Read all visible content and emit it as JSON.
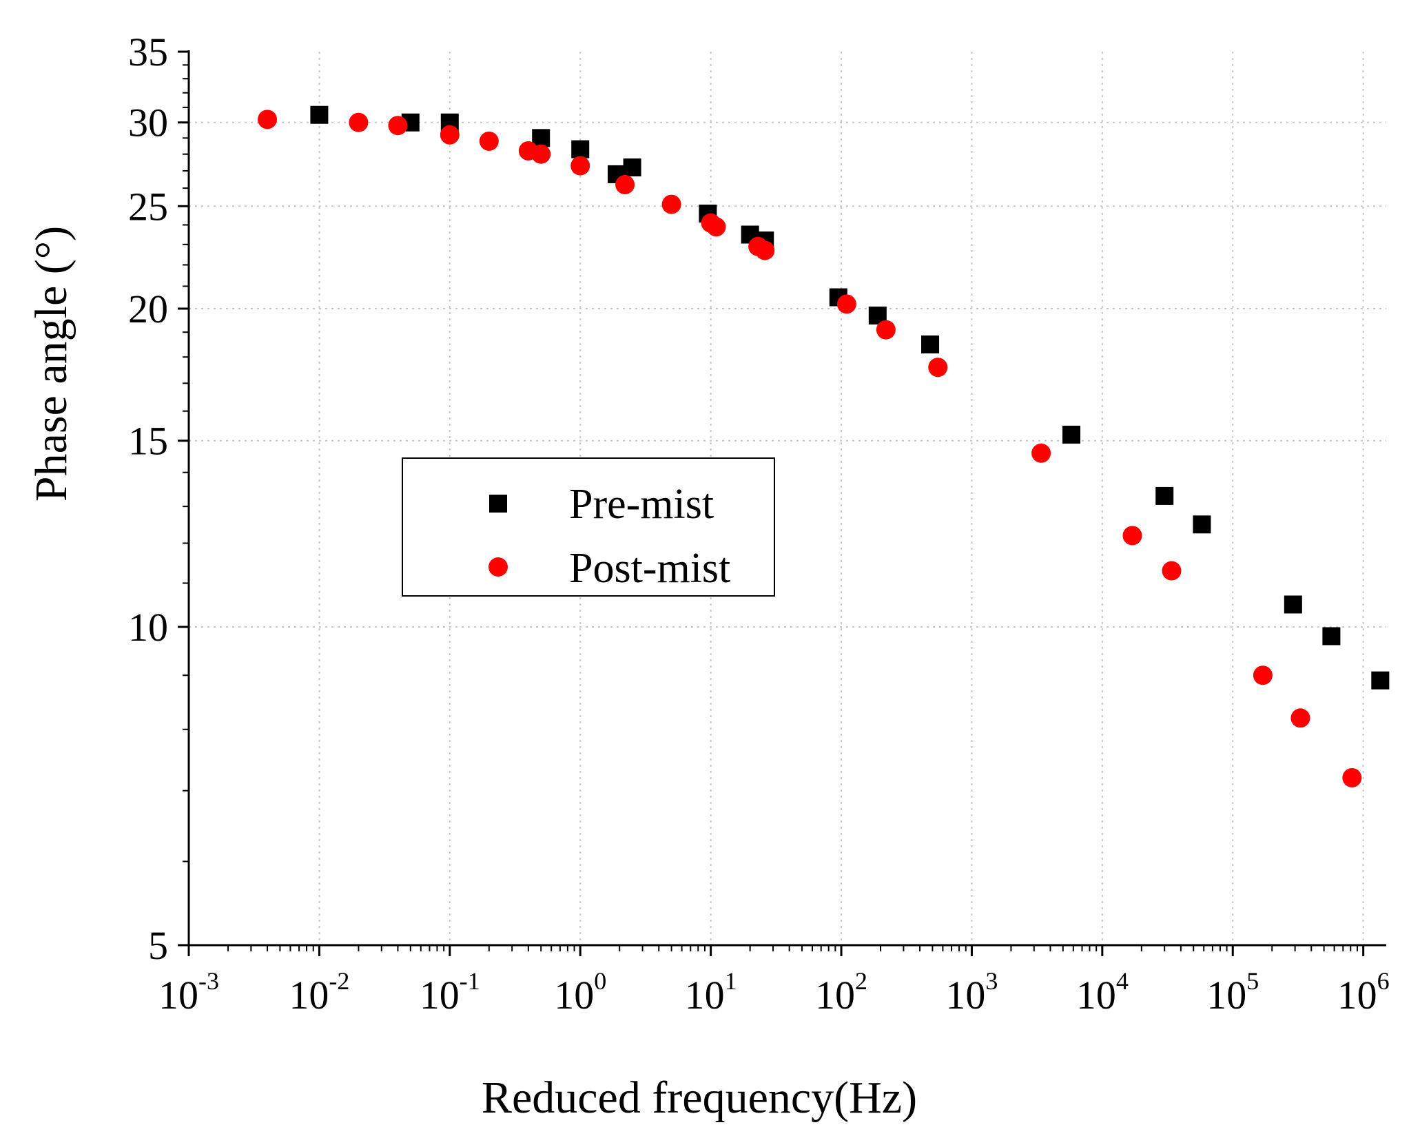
{
  "chart_data": {
    "type": "scatter",
    "title": "",
    "xlabel": "Reduced frequency(Hz)",
    "ylabel": "Phase angle (°)",
    "xscale": "log",
    "yscale": "log",
    "xlim": [
      0.001,
      1500000
    ],
    "ylim": [
      5,
      35
    ],
    "x_ticks": [
      {
        "value": 0.001,
        "base": "10",
        "exp": "-3"
      },
      {
        "value": 0.01,
        "base": "10",
        "exp": "-2"
      },
      {
        "value": 0.1,
        "base": "10",
        "exp": "-1"
      },
      {
        "value": 1,
        "base": "10",
        "exp": "0"
      },
      {
        "value": 10,
        "base": "10",
        "exp": "1"
      },
      {
        "value": 100,
        "base": "10",
        "exp": "2"
      },
      {
        "value": 1000,
        "base": "10",
        "exp": "3"
      },
      {
        "value": 10000,
        "base": "10",
        "exp": "4"
      },
      {
        "value": 100000,
        "base": "10",
        "exp": "5"
      },
      {
        "value": 1000000,
        "base": "10",
        "exp": "6"
      }
    ],
    "y_ticks": [
      {
        "value": 5,
        "label": "5"
      },
      {
        "value": 10,
        "label": "10"
      },
      {
        "value": 15,
        "label": "15"
      },
      {
        "value": 20,
        "label": "20"
      },
      {
        "value": 25,
        "label": "25"
      },
      {
        "value": 30,
        "label": "30"
      },
      {
        "value": 35,
        "label": "35"
      }
    ],
    "grid": true,
    "legend_position": "center-left",
    "series": [
      {
        "name": "Pre-mist",
        "marker": "square",
        "color": "#000000",
        "points": [
          {
            "x": 0.01,
            "y": 30.5
          },
          {
            "x": 0.05,
            "y": 30.0
          },
          {
            "x": 0.1,
            "y": 30.0
          },
          {
            "x": 0.5,
            "y": 29.0
          },
          {
            "x": 1.0,
            "y": 28.3
          },
          {
            "x": 1.9,
            "y": 26.8
          },
          {
            "x": 2.5,
            "y": 27.2
          },
          {
            "x": 9.5,
            "y": 24.6
          },
          {
            "x": 20,
            "y": 23.5
          },
          {
            "x": 26,
            "y": 23.2
          },
          {
            "x": 95,
            "y": 20.5
          },
          {
            "x": 190,
            "y": 19.7
          },
          {
            "x": 480,
            "y": 18.5
          },
          {
            "x": 5800,
            "y": 15.2
          },
          {
            "x": 30000,
            "y": 13.3
          },
          {
            "x": 58000,
            "y": 12.5
          },
          {
            "x": 290000,
            "y": 10.5
          },
          {
            "x": 570000,
            "y": 9.8
          },
          {
            "x": 1350000,
            "y": 8.9
          }
        ]
      },
      {
        "name": "Post-mist",
        "marker": "circle",
        "color": "#ff0000",
        "points": [
          {
            "x": 0.004,
            "y": 30.2
          },
          {
            "x": 0.02,
            "y": 30.0
          },
          {
            "x": 0.04,
            "y": 29.8
          },
          {
            "x": 0.1,
            "y": 29.2
          },
          {
            "x": 0.2,
            "y": 28.8
          },
          {
            "x": 0.4,
            "y": 28.2
          },
          {
            "x": 0.5,
            "y": 28.0
          },
          {
            "x": 1.0,
            "y": 27.3
          },
          {
            "x": 2.2,
            "y": 26.2
          },
          {
            "x": 5.0,
            "y": 25.1
          },
          {
            "x": 10,
            "y": 24.1
          },
          {
            "x": 11,
            "y": 23.9
          },
          {
            "x": 23,
            "y": 22.9
          },
          {
            "x": 26,
            "y": 22.7
          },
          {
            "x": 110,
            "y": 20.2
          },
          {
            "x": 220,
            "y": 19.1
          },
          {
            "x": 550,
            "y": 17.6
          },
          {
            "x": 3400,
            "y": 14.6
          },
          {
            "x": 17000,
            "y": 12.2
          },
          {
            "x": 34000,
            "y": 11.3
          },
          {
            "x": 170000,
            "y": 9.0
          },
          {
            "x": 330000,
            "y": 8.2
          },
          {
            "x": 820000,
            "y": 7.2
          }
        ]
      }
    ]
  }
}
